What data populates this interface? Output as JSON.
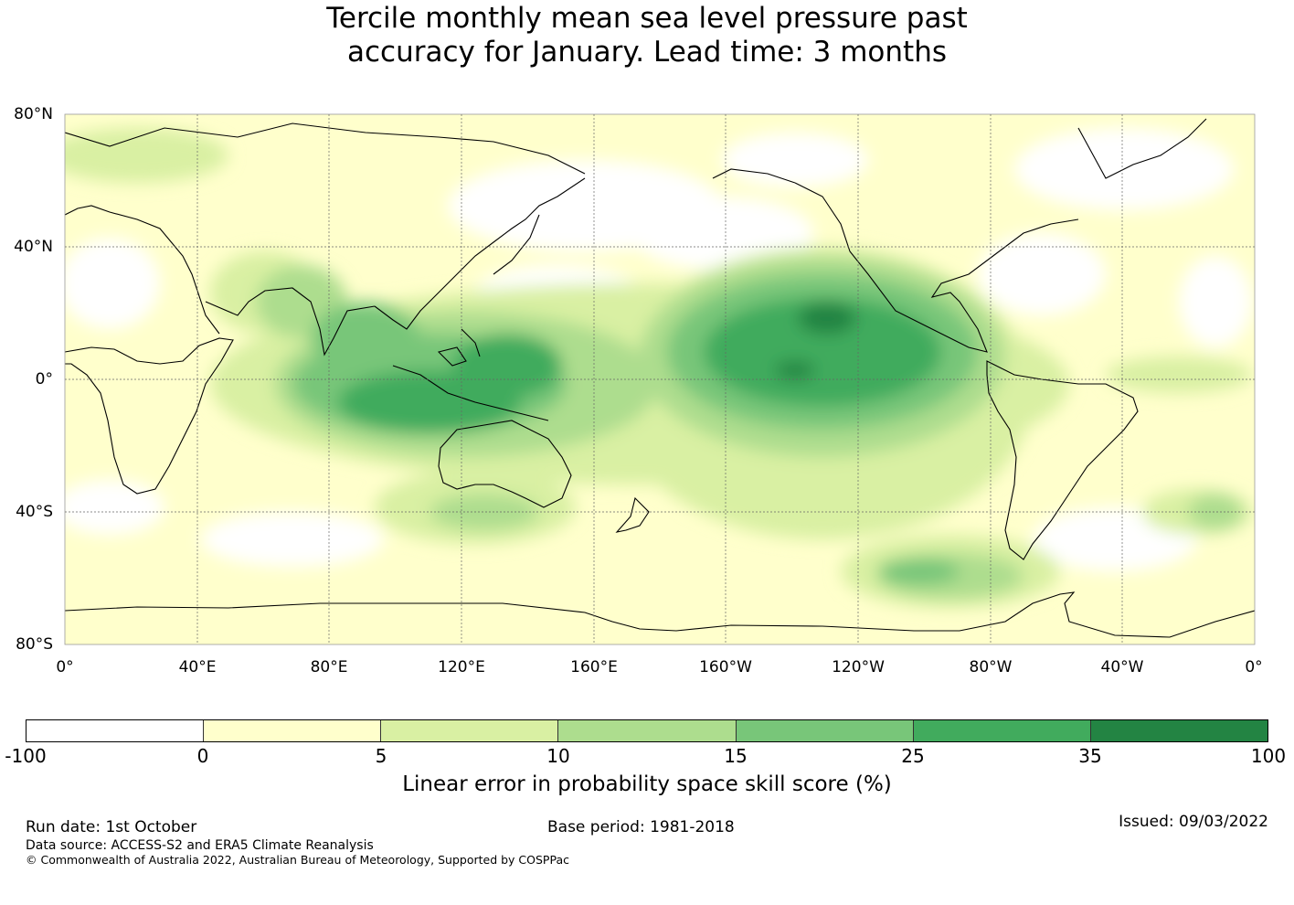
{
  "title": {
    "line1": "Tercile monthly mean sea level pressure past",
    "line2": "accuracy for January. Lead time: 3 months"
  },
  "map": {
    "projection": "equirectangular, Pacific-centred",
    "lat_labels": [
      "80°N",
      "40°N",
      "0°",
      "40°S",
      "80°S"
    ],
    "lon_labels": [
      "0°",
      "40°E",
      "80°E",
      "120°E",
      "160°E",
      "160°W",
      "120°W",
      "80°W",
      "40°W",
      "0°"
    ],
    "gridlines": "dotted grey"
  },
  "colorbar": {
    "ticks": [
      "-100",
      "0",
      "5",
      "10",
      "15",
      "25",
      "35",
      "100"
    ],
    "colors": [
      "#ffffff",
      "#ffffcc",
      "#d9f0a3",
      "#addd8e",
      "#78c679",
      "#41ab5d",
      "#238443"
    ],
    "label": "Linear error in probability space skill score (%)"
  },
  "footer": {
    "run_date": "Run date: 1st October",
    "base_period": "Base period: 1981-2018",
    "issued": "Issued: 09/03/2022",
    "data_source": "Data source: ACCESS-S2 and ERA5 Climate Reanalysis",
    "copyright": "© Commonwealth of Australia 2022, Australian Bureau of Meteorology, Supported by COSPPac"
  }
}
